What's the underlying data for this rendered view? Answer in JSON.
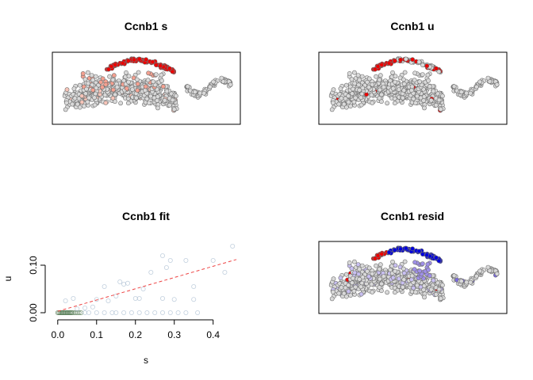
{
  "chart_data": [
    {
      "type": "scatter",
      "title": "Ccnb1 s",
      "xlabel": "",
      "ylabel": "",
      "axes": "none",
      "colors": {
        "low": "#d9d9d9",
        "high": "#ee0000"
      }
    },
    {
      "type": "scatter",
      "title": "Ccnb1 u",
      "xlabel": "",
      "ylabel": "",
      "axes": "none",
      "colors": {
        "low": "#d9d9d9",
        "high": "#ee0000"
      }
    },
    {
      "type": "scatter",
      "title": "Ccnb1 fit",
      "xlabel": "s",
      "ylabel": "u",
      "xlim": [
        -0.02,
        0.47
      ],
      "ylim": [
        -0.005,
        0.15
      ],
      "x_ticks": [
        0.0,
        0.1,
        0.2,
        0.3,
        0.4
      ],
      "x_tick_labels": [
        "0.0",
        "0.1",
        "0.2",
        "0.3",
        "0.4"
      ],
      "y_ticks": [
        0.0,
        0.1
      ],
      "y_tick_labels": [
        "0.00",
        "0.10"
      ],
      "fit_line": {
        "x0": 0.0,
        "y0": 0.003,
        "x1": 0.46,
        "y1": 0.112,
        "color": "#ee4444",
        "style": "dashed"
      },
      "series": [
        {
          "color": "#2a5a2a",
          "points": [
            [
              0.0,
              0.0
            ],
            [
              0.003,
              0.0
            ],
            [
              0.006,
              0.0
            ],
            [
              0.009,
              0.0
            ],
            [
              0.012,
              0.0
            ],
            [
              0.015,
              0.0
            ],
            [
              0.018,
              0.0
            ],
            [
              0.021,
              0.0
            ],
            [
              0.024,
              0.0
            ],
            [
              0.027,
              0.0
            ],
            [
              0.03,
              0.0
            ],
            [
              0.033,
              0.0
            ],
            [
              0.036,
              0.0
            ],
            [
              0.04,
              0.0
            ],
            [
              0.045,
              0.0
            ],
            [
              0.05,
              0.0
            ],
            [
              0.055,
              0.0
            ],
            [
              0.06,
              0.0
            ]
          ]
        },
        {
          "color": "#9ab0c8",
          "points": [
            [
              0.07,
              0.0
            ],
            [
              0.08,
              0.0
            ],
            [
              0.1,
              0.0
            ],
            [
              0.12,
              0.0
            ],
            [
              0.14,
              0.0
            ],
            [
              0.15,
              0.0
            ],
            [
              0.17,
              0.0
            ],
            [
              0.19,
              0.0
            ],
            [
              0.21,
              0.0
            ],
            [
              0.23,
              0.0
            ],
            [
              0.25,
              0.0
            ],
            [
              0.27,
              0.0
            ],
            [
              0.29,
              0.0
            ],
            [
              0.31,
              0.0
            ],
            [
              0.33,
              0.0
            ],
            [
              0.36,
              0.0
            ],
            [
              0.02,
              0.025
            ],
            [
              0.04,
              0.03
            ],
            [
              0.1,
              0.028
            ],
            [
              0.13,
              0.025
            ],
            [
              0.2,
              0.03
            ],
            [
              0.27,
              0.03
            ],
            [
              0.3,
              0.028
            ],
            [
              0.35,
              0.028
            ],
            [
              0.16,
              0.065
            ],
            [
              0.18,
              0.062
            ],
            [
              0.12,
              0.055
            ],
            [
              0.28,
              0.095
            ],
            [
              0.33,
              0.11
            ],
            [
              0.35,
              0.055
            ],
            [
              0.27,
              0.12
            ],
            [
              0.29,
              0.11
            ],
            [
              0.4,
              0.11
            ],
            [
              0.43,
              0.085
            ],
            [
              0.45,
              0.14
            ],
            [
              0.22,
              0.05
            ],
            [
              0.24,
              0.085
            ],
            [
              0.07,
              0.01
            ],
            [
              0.09,
              0.012
            ],
            [
              0.05,
              0.008
            ],
            [
              0.21,
              0.03
            ],
            [
              0.17,
              0.06
            ],
            [
              0.15,
              0.035
            ]
          ]
        }
      ]
    },
    {
      "type": "scatter",
      "title": "Ccnb1 resid",
      "xlabel": "",
      "ylabel": "",
      "axes": "none",
      "colors": {
        "low": "#d9d9d9",
        "negative": "#0000dd",
        "positive": "#ee0000"
      }
    }
  ]
}
